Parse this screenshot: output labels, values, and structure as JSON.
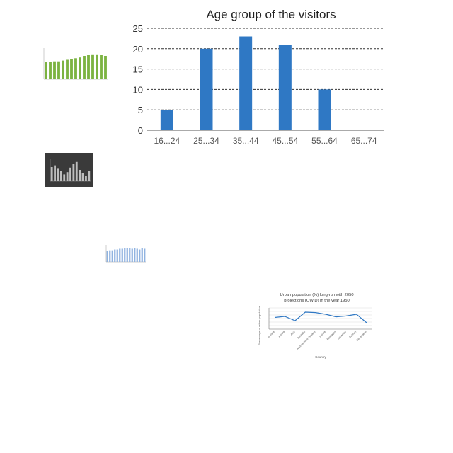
{
  "chart_data": [
    {
      "type": "bar",
      "title": "Age group of the visitors",
      "categories": [
        "16...24",
        "25...34",
        "35...44",
        "45...54",
        "55...64",
        "65...74"
      ],
      "values": [
        5,
        20,
        23,
        21,
        10,
        0
      ],
      "ylim": [
        0,
        25
      ],
      "yticks": [
        0,
        5,
        10,
        15,
        20,
        25
      ],
      "grid": true,
      "colors": {
        "bar": "#2f78c4",
        "grid": "#333333"
      }
    },
    {
      "type": "bar",
      "values": [
        22,
        22,
        23,
        23,
        24,
        25,
        26,
        27,
        28,
        30,
        31,
        32,
        32,
        31,
        30
      ],
      "ylim": [
        0,
        40
      ],
      "colors": {
        "bar": "#7cb342"
      }
    },
    {
      "type": "bar",
      "values": [
        25,
        28,
        22,
        18,
        12,
        16,
        24,
        30,
        34,
        20,
        14,
        10,
        18
      ],
      "ylim": [
        0,
        40
      ],
      "colors": {
        "bar": "#bdbdbd",
        "background": "#3a3a3a"
      }
    },
    {
      "type": "bar",
      "values": [
        14,
        15,
        15,
        16,
        16,
        17,
        17,
        18,
        18,
        18,
        17,
        18,
        17,
        16,
        18,
        17
      ],
      "ylim": [
        0,
        22
      ],
      "colors": {
        "bar": "#8fb3e0"
      }
    },
    {
      "type": "line",
      "title": "Urban population (%) long-run with 2050 projections (OWID) in the year 1950",
      "xlabel": "Country",
      "ylabel": "Percentage of urban population",
      "categories": [
        "Andorra",
        "Austria",
        "Asia",
        "Australia",
        "Australia/New Zealand",
        "Austria",
        "Azerbaijan",
        "Bahamas",
        "Bahrain",
        "Bangladesh"
      ],
      "values": [
        55,
        60,
        40,
        80,
        78,
        70,
        58,
        62,
        70,
        30
      ],
      "ylim": [
        0,
        100
      ],
      "colors": {
        "line": "#2f78c4"
      }
    }
  ]
}
